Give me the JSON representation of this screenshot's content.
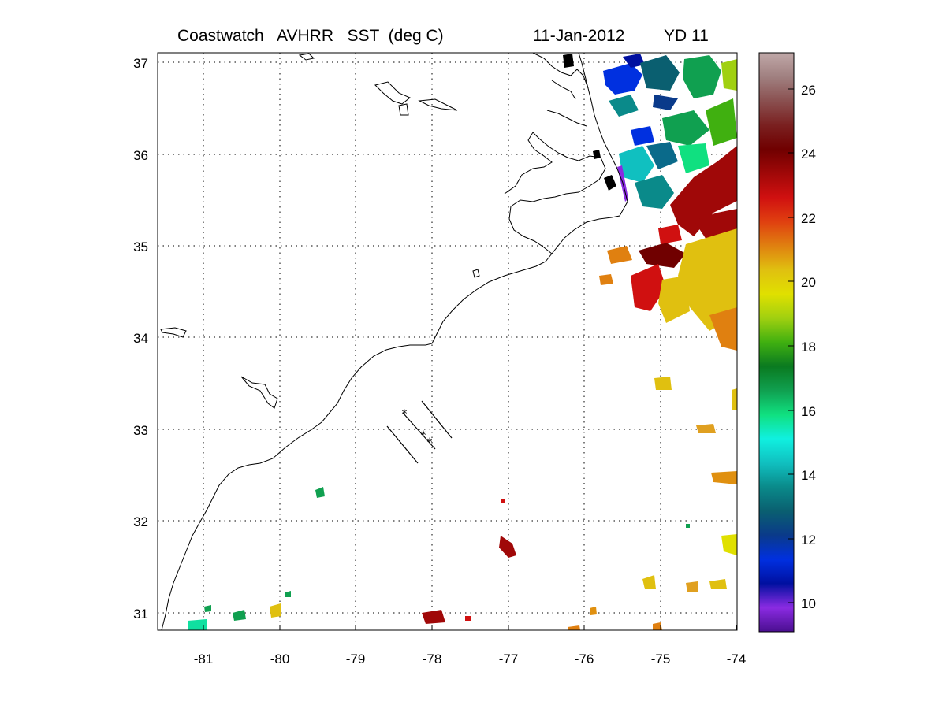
{
  "title": {
    "product": "Coastwatch   AVHRR   SST  (deg C)",
    "date": "11-Jan-2012",
    "yearday": "YD 11"
  },
  "map": {
    "lon_range": [
      -81.55,
      -73.95
    ],
    "lat_range": [
      30.8,
      37.1
    ],
    "x_ticks": [
      -81,
      -80,
      -79,
      -78,
      -77,
      -76,
      -75,
      -74
    ],
    "y_ticks": [
      31,
      32,
      33,
      34,
      35,
      36,
      37
    ],
    "x_tick_labels": [
      "-81",
      "-80",
      "-79",
      "-78",
      "-77",
      "-76",
      "-75",
      "-74"
    ],
    "y_tick_labels": [
      "31",
      "32",
      "33",
      "34",
      "35",
      "36",
      "37"
    ],
    "grid": "dotted"
  },
  "colorbar": {
    "range": [
      9,
      27
    ],
    "ticks": [
      10,
      12,
      14,
      16,
      18,
      20,
      22,
      24,
      26
    ],
    "tick_labels": [
      "10",
      "12",
      "14",
      "16",
      "18",
      "20",
      "22",
      "24",
      "26"
    ],
    "colors": [
      "#4a0f90",
      "#8a2be2",
      "#0010a0",
      "#0030e0",
      "#0a3a8a",
      "#0a5f70",
      "#0a8a8a",
      "#10c0c0",
      "#10f0e0",
      "#10e080",
      "#10a050",
      "#0a7a20",
      "#40b010",
      "#a0d010",
      "#e0e000",
      "#e0c010",
      "#e08010",
      "#e04010",
      "#d01010",
      "#a00808",
      "#700000",
      "#7a2020",
      "#8a5050",
      "#a08080",
      "#c0a8a8"
    ]
  },
  "chart_data": {
    "type": "heatmap",
    "variable": "SST (deg C)",
    "x": [
      -75.9,
      -75.8,
      -75.6,
      -75.4,
      -75.2,
      -75.0,
      -74.6,
      -74.3,
      -74.1,
      -75.4,
      -74.5,
      -74.9,
      -75.5,
      -74.5,
      -74.3,
      -74.0,
      -74.2,
      -75.0,
      -75.8,
      -80.4,
      -80.0,
      -79.5,
      -78.0,
      -76.9,
      -76.1,
      -75.0
    ],
    "y": [
      36.95,
      36.5,
      36.3,
      36.0,
      35.7,
      35.6,
      35.5,
      35.3,
      35.0,
      34.5,
      34.7,
      34.8,
      35.5,
      36.8,
      36.1,
      34.2,
      33.2,
      31.4,
      35.0,
      30.95,
      31.05,
      32.3,
      30.95,
      31.75,
      30.95,
      30.85
    ],
    "values": [
      10,
      11,
      13,
      14,
      15,
      12,
      23,
      23.5,
      21,
      23,
      20.5,
      23.5,
      9.5,
      17,
      19,
      21,
      21,
      21,
      21.5,
      17,
      21,
      18,
      23,
      23,
      22,
      22.5
    ]
  },
  "markers": {
    "symbol": "*",
    "points": [
      [
        -78.35,
        33.18
      ],
      [
        -78.1,
        32.93
      ],
      [
        -78.0,
        32.85
      ]
    ]
  }
}
